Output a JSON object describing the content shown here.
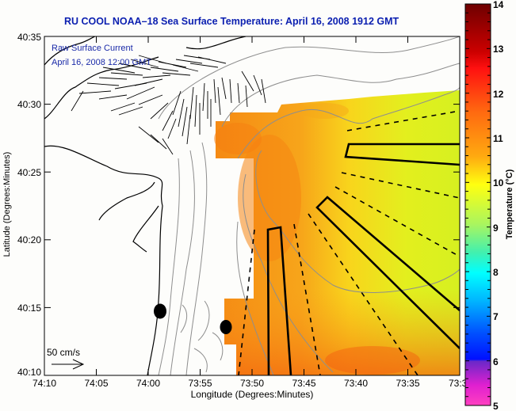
{
  "title": "RU COOL  NOAA–18  Sea Surface Temperature:  April 16, 2008 1912 GMT",
  "overlay": {
    "line1": "Raw Surface Current",
    "line2": "April 16, 2008 12:00 GMT"
  },
  "scale_label": "50 cm/s",
  "axes": {
    "xlabel": "Longitude (Degrees:Minutes)",
    "ylabel": "Latitude (Degrees:Minutes)",
    "xticks": [
      "74:10",
      "74:05",
      "74:00",
      "73:55",
      "73:50",
      "73:45",
      "73:40",
      "73:35",
      "73:3"
    ],
    "yticks": [
      "40:35",
      "40:30",
      "40:25",
      "40:20",
      "40:15",
      "40:10"
    ]
  },
  "colorbar": {
    "label": "Temperature (°C)",
    "min": 5,
    "max": 14,
    "ticks": [
      "14",
      "13",
      "12",
      "11",
      "10",
      "9",
      "8",
      "7",
      "6",
      "5"
    ]
  },
  "colors": {
    "title": "#0b1fb0",
    "sst_warm": "#f7901a",
    "sst_mid": "#f7d81a",
    "sst_cool": "#d5f21e"
  },
  "markers": [
    "station-dot-1",
    "station-dot-2"
  ]
}
